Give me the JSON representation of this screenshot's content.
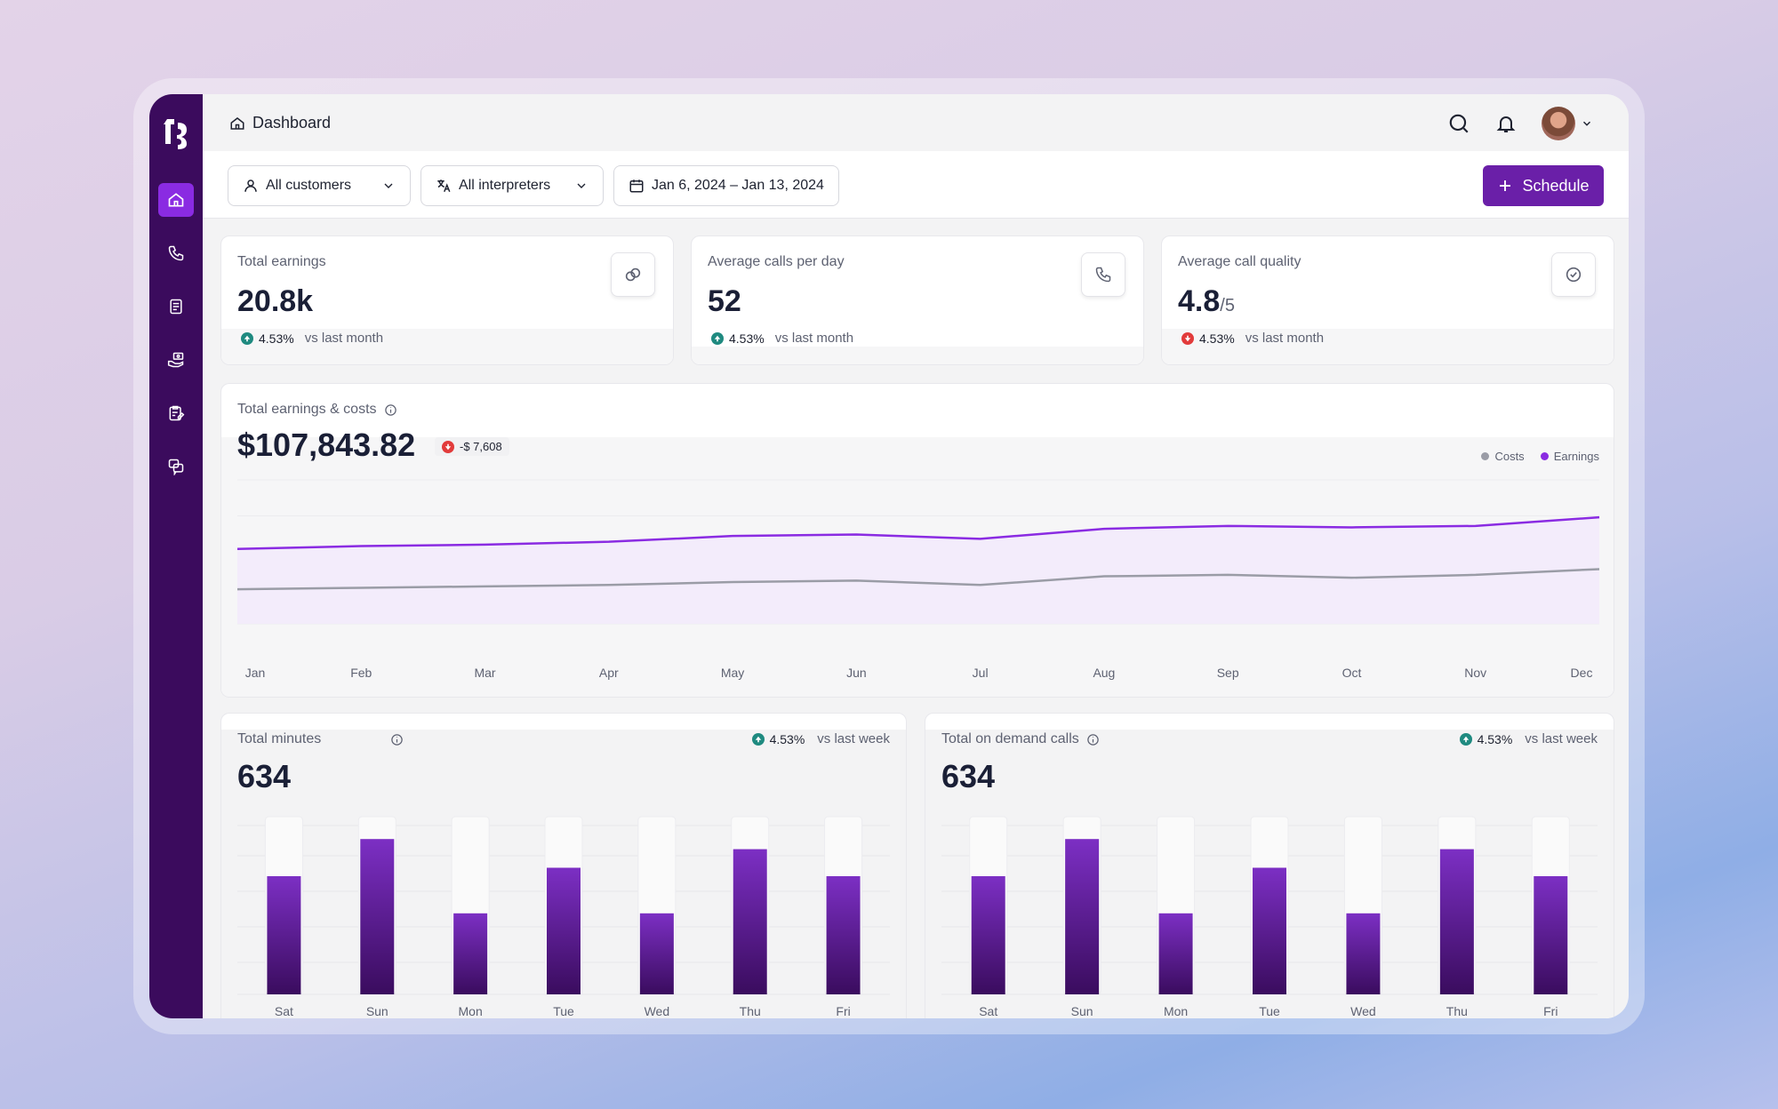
{
  "header": {
    "breadcrumb": "Dashboard"
  },
  "filters": {
    "customers": "All customers",
    "interpreters": "All interpreters",
    "date_range": "Jan 6, 2024 – Jan 13, 2024",
    "schedule_label": "Schedule"
  },
  "kpis": [
    {
      "label": "Total earnings",
      "value": "20.8k",
      "suffix": "",
      "delta": "4.53%",
      "direction": "up",
      "vs": "vs last month",
      "icon": "link-icon"
    },
    {
      "label": "Average calls per day",
      "value": "52",
      "suffix": "",
      "delta": "4.53%",
      "direction": "up",
      "vs": "vs last month",
      "icon": "phone-icon"
    },
    {
      "label": "Average call quality",
      "value": "4.8",
      "suffix": "/5",
      "delta": "4.53%",
      "direction": "down",
      "vs": "vs last month",
      "icon": "check-circle-icon"
    }
  ],
  "earnings_chart": {
    "title": "Total earnings & costs",
    "value": "$107,843.82",
    "badge": "-$ 7,608",
    "chart_data": {
      "type": "line",
      "x": [
        "Jan",
        "Feb",
        "Mar",
        "Apr",
        "May",
        "Jun",
        "Jul",
        "Aug",
        "Sep",
        "Oct",
        "Nov",
        "Dec"
      ],
      "series": [
        {
          "name": "Earnings",
          "color": "#8a2be2",
          "values": [
            52,
            54,
            55,
            57,
            61,
            62,
            59,
            66,
            68,
            67,
            68,
            74
          ]
        },
        {
          "name": "Costs",
          "color": "#9a9ca6",
          "values": [
            24,
            25,
            26,
            27,
            29,
            30,
            27,
            33,
            34,
            32,
            34,
            38
          ]
        }
      ]
    }
  },
  "bar_charts": [
    {
      "title": "Total minutes",
      "value": "634",
      "delta": "4.53%",
      "vs": "vs last week",
      "chart_data": {
        "type": "bar",
        "categories": [
          "Sat",
          "Sun",
          "Mon",
          "Tue",
          "Wed",
          "Thu",
          "Fri"
        ],
        "values": [
          70,
          92,
          48,
          75,
          48,
          86,
          70
        ],
        "ylim": [
          0,
          100
        ]
      }
    },
    {
      "title": "Total on demand calls",
      "value": "634",
      "delta": "4.53%",
      "vs": "vs last week",
      "chart_data": {
        "type": "bar",
        "categories": [
          "Sat",
          "Sun",
          "Mon",
          "Tue",
          "Wed",
          "Thu",
          "Fri"
        ],
        "values": [
          70,
          92,
          48,
          75,
          48,
          86,
          70
        ],
        "ylim": [
          0,
          100
        ]
      }
    }
  ],
  "colors": {
    "sidebar": "#3b0b5d",
    "accent": "#6a1fa8",
    "positive": "#1f8a80",
    "negative": "#e23b3b"
  }
}
